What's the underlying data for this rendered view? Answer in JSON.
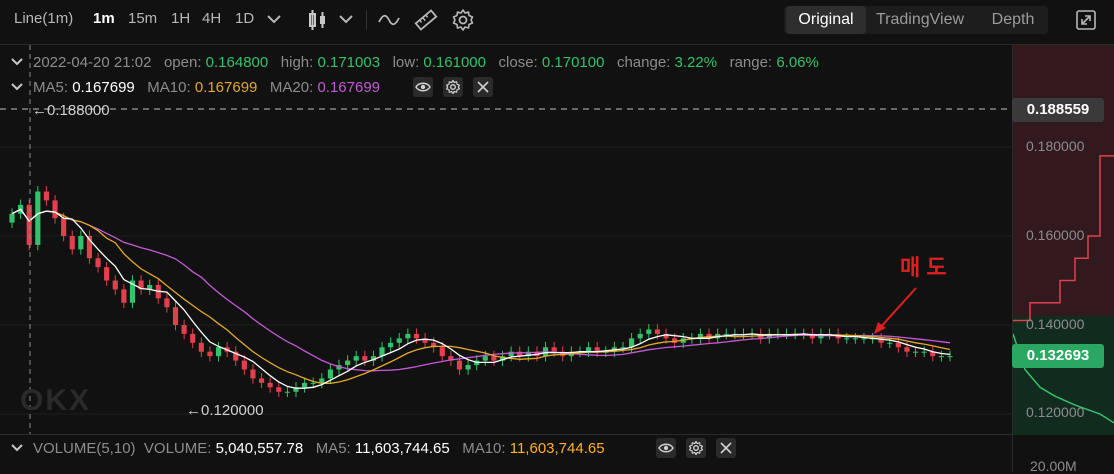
{
  "toolbar": {
    "chart_type": "Line(1m)",
    "timeframes": [
      "1m",
      "15m",
      "1H",
      "4H",
      "1D"
    ],
    "selected_timeframe": "1m",
    "views": [
      "Original",
      "TradingView",
      "Depth"
    ],
    "active_view": "Original"
  },
  "ohlc": {
    "datetime": "2022-04-20 21:02",
    "open_label": "open:",
    "open": "0.164800",
    "high_label": "high:",
    "high": "0.171003",
    "low_label": "low:",
    "low": "0.161000",
    "close_label": "close:",
    "close": "0.170100",
    "change_label": "change:",
    "change": "3.22%",
    "range_label": "range:",
    "range": "6.06%"
  },
  "ma": {
    "ma5_label": "MA5:",
    "ma5": "0.167699",
    "ma10_label": "MA10:",
    "ma10": "0.167699",
    "ma20_label": "MA20:",
    "ma20": "0.167699",
    "colors": {
      "ma5": "#ffffff",
      "ma10": "#e3a92a",
      "ma20": "#c45ad6"
    }
  },
  "price_axis": {
    "labels": [
      "0.180000",
      "0.160000",
      "0.140000",
      "0.120000"
    ],
    "current_high_tag": "0.188559",
    "current_price_tag": "0.132693",
    "high_marker": "0.188000",
    "low_marker": "0.120000"
  },
  "annotation": {
    "text": "매 도",
    "color": "#e02020"
  },
  "watermark": "OKX",
  "volume": {
    "title": "VOLUME(5,10)",
    "volume_label": "VOLUME:",
    "volume": "5,040,557.78",
    "ma5_label": "MA5:",
    "ma5": "11,603,744.65",
    "ma10_label": "MA10:",
    "ma10": "11,603,744.65",
    "axis_label": "20.00M"
  },
  "colors": {
    "up": "#33c26b",
    "down": "#e0414c",
    "background": "#111111",
    "current_price_tag_bg": "#2aa862"
  },
  "chart_data": {
    "type": "candlestick",
    "ylim": [
      0.112,
      0.195
    ],
    "close": [
      0.165,
      0.167,
      0.158,
      0.17,
      0.168,
      0.164,
      0.16,
      0.157,
      0.16,
      0.155,
      0.153,
      0.15,
      0.148,
      0.145,
      0.15,
      0.148,
      0.149,
      0.146,
      0.144,
      0.14,
      0.138,
      0.136,
      0.134,
      0.133,
      0.135,
      0.134,
      0.132,
      0.13,
      0.128,
      0.127,
      0.126,
      0.125,
      0.125,
      0.126,
      0.127,
      0.127,
      0.128,
      0.13,
      0.131,
      0.132,
      0.133,
      0.132,
      0.133,
      0.135,
      0.136,
      0.137,
      0.138,
      0.137,
      0.136,
      0.135,
      0.133,
      0.132,
      0.13,
      0.131,
      0.132,
      0.133,
      0.132,
      0.133,
      0.134,
      0.133,
      0.134,
      0.133,
      0.135,
      0.134,
      0.133,
      0.134,
      0.134,
      0.135,
      0.134,
      0.134,
      0.135,
      0.135,
      0.137,
      0.138,
      0.139,
      0.138,
      0.137,
      0.136,
      0.137,
      0.137,
      0.138,
      0.137,
      0.138,
      0.138,
      0.138,
      0.138,
      0.138,
      0.137,
      0.138,
      0.138,
      0.138,
      0.138,
      0.138,
      0.137,
      0.138,
      0.138,
      0.137,
      0.137,
      0.137,
      0.137,
      0.137,
      0.136,
      0.136,
      0.135,
      0.134,
      0.134,
      0.134,
      0.133,
      0.133,
      0.133
    ]
  }
}
